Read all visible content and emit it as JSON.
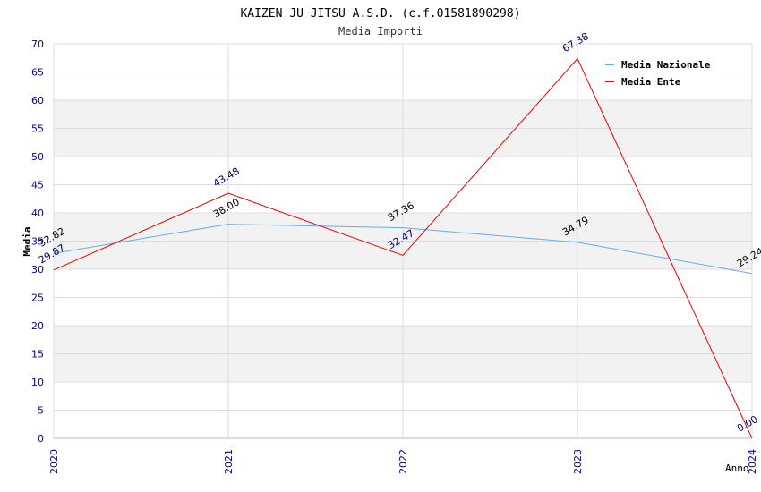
{
  "chart_data": {
    "type": "line",
    "title": "KAIZEN JU JITSU A.S.D. (c.f.01581890298)",
    "subtitle": "Media Importi",
    "xlabel": "Anno",
    "ylabel": "Media",
    "categories": [
      "2020",
      "2021",
      "2022",
      "2023",
      "2024"
    ],
    "ylim": [
      0,
      70
    ],
    "yticks": [
      0,
      5,
      10,
      15,
      20,
      25,
      30,
      35,
      40,
      45,
      50,
      55,
      60,
      65,
      70
    ],
    "grid": true,
    "legend_position": "top-right",
    "series": [
      {
        "name": "Media Nazionale",
        "color": "#66aaee",
        "label_color": "#000000",
        "values": [
          32.82,
          38.0,
          37.36,
          34.79,
          29.24
        ],
        "labels": [
          "32.82",
          "38.00",
          "37.36",
          "34.79",
          "29.24"
        ]
      },
      {
        "name": "Media Ente",
        "color": "#ee0000",
        "label_color": "#000066",
        "values": [
          29.87,
          43.48,
          32.47,
          67.38,
          0.0
        ],
        "labels": [
          "29.87",
          "43.48",
          "32.47",
          "67.38",
          "0.00"
        ]
      }
    ]
  },
  "colors": {
    "axis_tick_text": "#0000aa",
    "band": "#f2f2f2",
    "gridline": "#dddddd"
  }
}
